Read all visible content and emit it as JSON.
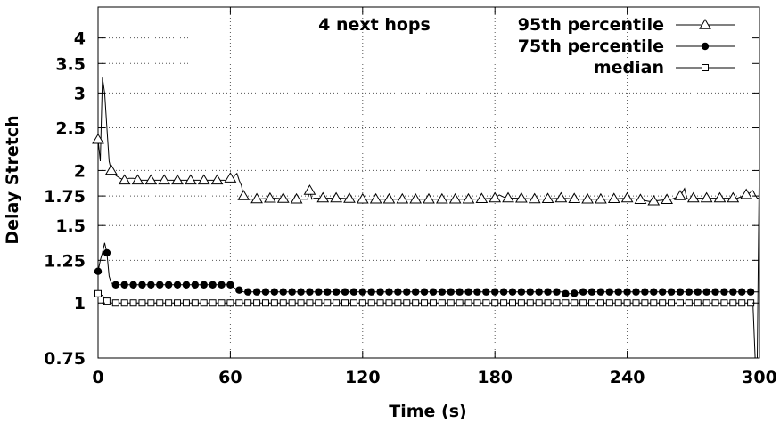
{
  "chart_data": {
    "type": "line",
    "title": "4 next hops",
    "xlabel": "Time (s)",
    "ylabel": "Delay Stretch",
    "xlim": [
      0,
      300
    ],
    "ylim": [
      0.75,
      4.7
    ],
    "y_scale": "log",
    "x_ticks": [
      0,
      60,
      120,
      180,
      240,
      300
    ],
    "y_ticks": [
      0.75,
      1,
      1.25,
      1.5,
      1.75,
      2,
      2.5,
      3,
      3.5,
      4
    ],
    "y_tick_labels": [
      "0.75",
      "1",
      "1.25",
      "1.5",
      "1.75",
      "2",
      "2.5",
      "3",
      "3.5",
      "4"
    ],
    "grid": "dotted",
    "legend_position": "top-right",
    "series": [
      {
        "name": "95th percentile",
        "marker": "triangle-open",
        "x": [
          0,
          1,
          2,
          3,
          4,
          5,
          6,
          7,
          8,
          10,
          12,
          14,
          16,
          18,
          20,
          30,
          40,
          50,
          58,
          60,
          61,
          62,
          63,
          64,
          65,
          66,
          67,
          70,
          80,
          90,
          95,
          96,
          97,
          98,
          100,
          110,
          120,
          130,
          140,
          150,
          160,
          170,
          180,
          182,
          185,
          190,
          200,
          210,
          220,
          230,
          240,
          245,
          250,
          260,
          264,
          266,
          267,
          268,
          270,
          280,
          290,
          295,
          297,
          298,
          299,
          300
        ],
        "y": [
          2.35,
          2.1,
          3.25,
          3.0,
          2.5,
          2.1,
          2.0,
          1.98,
          1.95,
          1.92,
          1.9,
          1.92,
          1.92,
          1.9,
          1.9,
          1.9,
          1.9,
          1.9,
          1.9,
          1.92,
          1.9,
          1.95,
          1.97,
          1.9,
          1.85,
          1.75,
          1.72,
          1.72,
          1.73,
          1.72,
          1.72,
          1.8,
          1.72,
          1.73,
          1.73,
          1.73,
          1.72,
          1.72,
          1.72,
          1.72,
          1.72,
          1.72,
          1.73,
          1.76,
          1.73,
          1.73,
          1.72,
          1.73,
          1.72,
          1.72,
          1.73,
          1.72,
          1.7,
          1.72,
          1.75,
          1.82,
          1.73,
          1.72,
          1.73,
          1.73,
          1.73,
          1.77,
          1.8,
          1.76,
          1.73,
          1.73
        ]
      },
      {
        "name": "75th percentile",
        "marker": "circle-filled",
        "x": [
          0,
          1,
          2,
          3,
          4,
          5,
          6,
          8,
          10,
          20,
          30,
          40,
          50,
          60,
          62,
          64,
          66,
          70,
          80,
          90,
          100,
          120,
          140,
          160,
          180,
          200,
          210,
          212,
          215,
          220,
          240,
          250,
          260,
          270,
          280,
          290,
          298,
          299,
          300
        ],
        "y": [
          1.18,
          1.25,
          1.3,
          1.37,
          1.3,
          1.15,
          1.11,
          1.1,
          1.1,
          1.1,
          1.1,
          1.1,
          1.1,
          1.1,
          1.08,
          1.07,
          1.06,
          1.06,
          1.06,
          1.06,
          1.06,
          1.06,
          1.06,
          1.06,
          1.06,
          1.06,
          1.06,
          1.05,
          1.05,
          1.06,
          1.06,
          1.06,
          1.06,
          1.06,
          1.06,
          1.06,
          1.06,
          1.06,
          1.06
        ]
      },
      {
        "name": "median",
        "marker": "square-open",
        "x": [
          0,
          2,
          4,
          6,
          10,
          20,
          40,
          60,
          80,
          100,
          120,
          140,
          160,
          180,
          200,
          220,
          240,
          260,
          280,
          297,
          298,
          299,
          300
        ],
        "y": [
          1.05,
          1.04,
          1.01,
          1.0,
          1.0,
          1.0,
          1.0,
          1.0,
          1.0,
          1.0,
          1.0,
          1.0,
          1.0,
          1.0,
          1.0,
          1.0,
          1.0,
          1.0,
          1.0,
          1.0,
          0.75,
          0.75,
          2.3
        ]
      }
    ]
  }
}
